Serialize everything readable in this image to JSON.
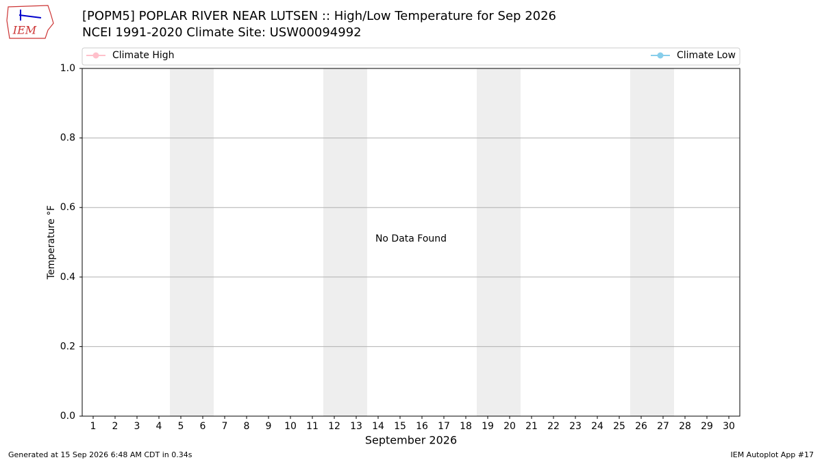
{
  "logo_text": "IEM",
  "chart_data": {
    "type": "line",
    "title": "[POPM5] POPLAR RIVER NEAR LUTSEN :: High/Low Temperature for Sep 2026",
    "subtitle": "NCEI 1991-2020 Climate Site: USW00094992",
    "xlabel": "September 2026",
    "ylabel": "Temperature °F",
    "annotation": "No Data Found",
    "x": [],
    "series": [
      {
        "name": "Climate High",
        "color": "#ffc0cb",
        "values": []
      },
      {
        "name": "Climate Low",
        "color": "#87ceeb",
        "values": []
      }
    ],
    "xlim": [
      0.5,
      30.5
    ],
    "xticks": [
      1,
      2,
      3,
      4,
      5,
      6,
      7,
      8,
      9,
      10,
      11,
      12,
      13,
      14,
      15,
      16,
      17,
      18,
      19,
      20,
      21,
      22,
      23,
      24,
      25,
      26,
      27,
      28,
      29,
      30
    ],
    "ylim": [
      0,
      1
    ],
    "yticks": [
      {
        "value": 0,
        "label": "0.0"
      },
      0.2,
      0.4,
      0.6,
      0.8,
      {
        "value": 1,
        "label": "1.0"
      }
    ],
    "grid": true,
    "shaded_x_ranges": [
      [
        4.5,
        6.5
      ],
      [
        11.5,
        13.5
      ],
      [
        18.5,
        20.5
      ],
      [
        25.5,
        27.5
      ]
    ],
    "shade_color": "#eeeeee"
  },
  "footer": {
    "left": "Generated at 15 Sep 2026 6:48 AM CDT in 0.34s",
    "right": "IEM Autoplot App #17"
  }
}
